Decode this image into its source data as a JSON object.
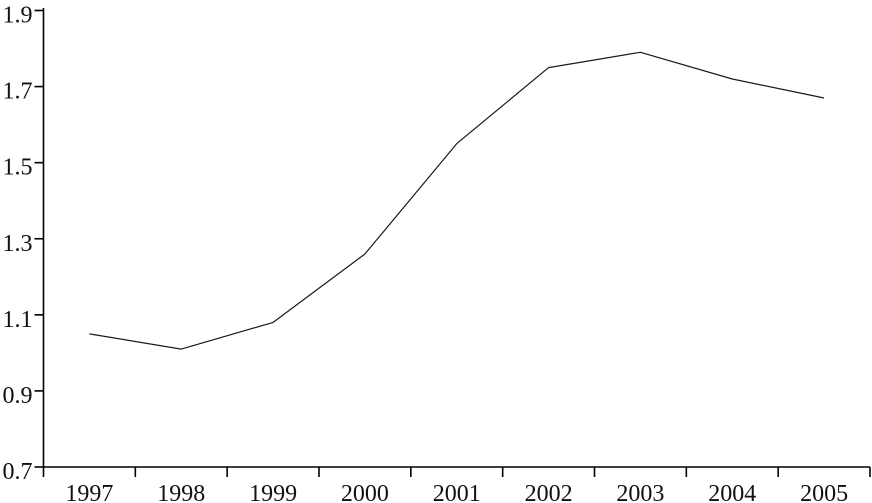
{
  "chart_data": {
    "type": "line",
    "title": "",
    "xlabel": "",
    "ylabel": "",
    "categories": [
      "1997",
      "1998",
      "1999",
      "2000",
      "2001",
      "2002",
      "2003",
      "2004",
      "2005"
    ],
    "values": [
      1.05,
      1.01,
      1.08,
      1.26,
      1.55,
      1.75,
      1.79,
      1.72,
      1.67
    ],
    "ylim": [
      0.7,
      1.9
    ],
    "ytick_step": 0.2,
    "ytick_labels": [
      "1.9",
      "1.7",
      "1.5",
      "1.3",
      "1.1",
      "0.9",
      "0.7"
    ],
    "grid": false,
    "legend": false,
    "line_color": "#1a1a1a",
    "axis_color": "#000000",
    "label_color": "#111111",
    "background": "#ffffff"
  }
}
